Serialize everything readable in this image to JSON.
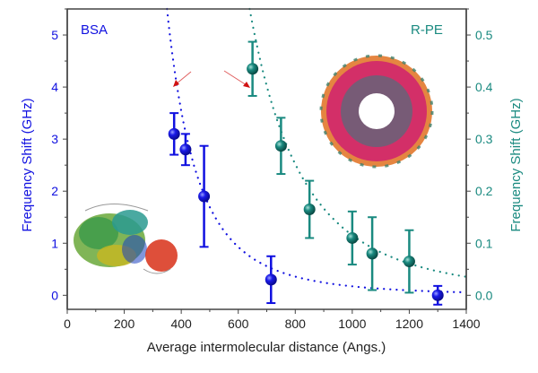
{
  "chart_data": {
    "type": "scatter",
    "title": "",
    "xlabel": "Average intermolecular  distance (Angs.)",
    "ylabel_left": "Frequency Shift (GHz)",
    "ylabel_right": "Frequency Shift (GHz)",
    "xlim": [
      0,
      1400
    ],
    "ylim_left": [
      -0.27,
      5.5
    ],
    "ylim_right": [
      -0.027,
      0.55
    ],
    "x_ticks": [
      "0",
      "200",
      "400",
      "600",
      "800",
      "1000",
      "1200",
      "1400"
    ],
    "y_left_ticks": [
      "0",
      "1",
      "2",
      "3",
      "4",
      "5"
    ],
    "y_right_ticks": [
      "0.0",
      "0.1",
      "0.2",
      "0.3",
      "0.4",
      "0.5"
    ],
    "grid": false,
    "series": [
      {
        "name": "BSA",
        "axis": "left",
        "color": "#1010e0",
        "x": [
          375,
          415,
          480,
          715,
          1300
        ],
        "y": [
          3.1,
          2.8,
          1.9,
          0.3,
          0.0
        ],
        "yerr": [
          0.4,
          0.3,
          0.97,
          0.45,
          0.18
        ],
        "fit": {
          "type": "power",
          "x0": 350,
          "y0": 5.5,
          "exponent": 3.3
        }
      },
      {
        "name": "R-PE",
        "axis": "right",
        "color": "#1a8a80",
        "x": [
          650,
          750,
          850,
          1000,
          1070,
          1200
        ],
        "y": [
          0.435,
          0.287,
          0.165,
          0.11,
          0.08,
          0.065
        ],
        "yerr": [
          0.052,
          0.054,
          0.055,
          0.051,
          0.07,
          0.06
        ],
        "fit": {
          "type": "power",
          "x0": 640,
          "y0": 0.55,
          "exponent": 3.5
        }
      }
    ],
    "annotations": [
      "BSA",
      "R-PE"
    ]
  }
}
